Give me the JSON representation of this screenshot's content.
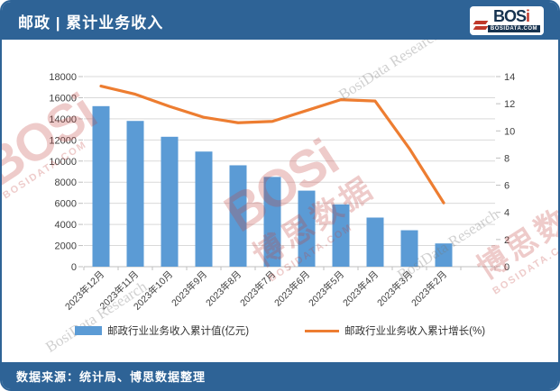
{
  "header": {
    "title": "邮政 | 累计业务收入"
  },
  "logo": {
    "brand_prefix": "BOS",
    "brand_suffix": "i",
    "domain": "BOSIDATA.COM"
  },
  "footer": {
    "source": "数据来源：统计局、博思数据整理"
  },
  "watermarks": {
    "brand": "BOSi",
    "domain": "BOSIDATA.COM",
    "brand_cn": "博思数据",
    "research": "BosiData Research"
  },
  "chart_data": {
    "type": "bar",
    "title": "邮政 | 累计业务收入",
    "categories": [
      "2023年12月",
      "2023年11月",
      "2023年10月",
      "2023年9月",
      "2023年8月",
      "2023年7月",
      "2023年6月",
      "2023年5月",
      "2023年4月",
      "2023年3月",
      "2023年2月"
    ],
    "series": [
      {
        "name": "邮政行业业务收入累计值(亿元)",
        "type": "bar",
        "axis": "left",
        "color": "#5B9BD5",
        "values": [
          15200,
          13800,
          12300,
          10900,
          9600,
          8500,
          7200,
          5900,
          4650,
          3450,
          2200
        ]
      },
      {
        "name": "邮政行业业务收入累计增长(%)",
        "type": "line",
        "axis": "right",
        "color": "#ED7D31",
        "values": [
          13.3,
          12.7,
          11.8,
          11.0,
          10.6,
          10.7,
          11.5,
          12.3,
          12.2,
          8.7,
          4.7
        ]
      }
    ],
    "left_axis": {
      "min": 0,
      "max": 18000,
      "step": 2000,
      "tick_labels": [
        "0",
        "2000",
        "4000",
        "6000",
        "8000",
        "10000",
        "12000",
        "14000",
        "16000",
        "18000"
      ]
    },
    "right_axis": {
      "min": 0,
      "max": 14,
      "step": 2,
      "tick_labels": [
        "0",
        "2",
        "4",
        "6",
        "8",
        "10",
        "12",
        "14"
      ]
    },
    "grid": "horizontal",
    "legend_position": "bottom",
    "xlabel": "",
    "ylabel_left": "亿元",
    "ylabel_right": "%"
  }
}
